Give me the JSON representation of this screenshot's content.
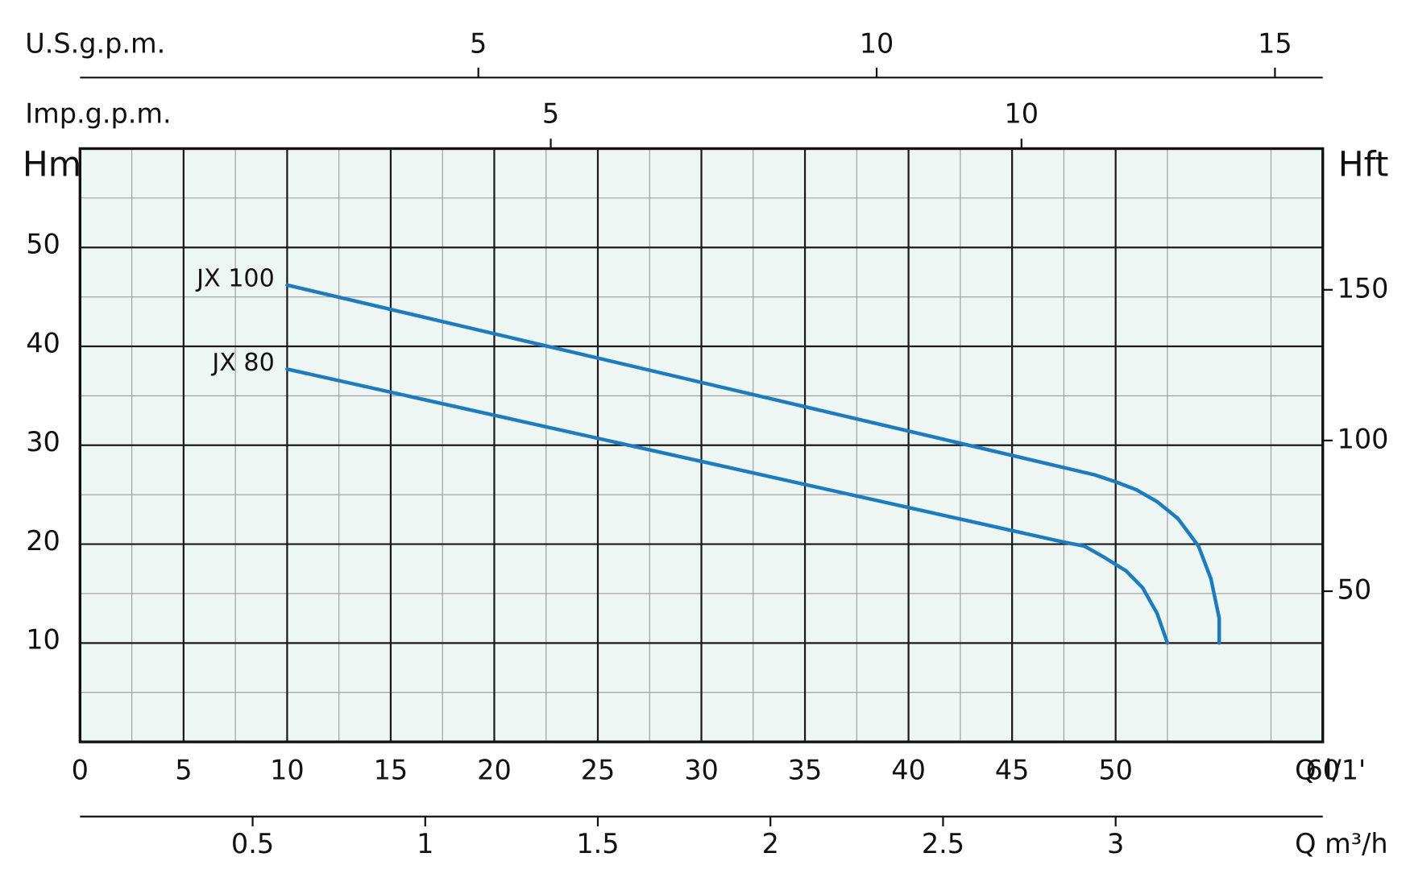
{
  "chart_data": {
    "type": "line",
    "x_label": "Q l/1'",
    "y_label": "Hm",
    "y2_label": "Hft",
    "xlim": [
      0,
      60
    ],
    "xticks": [
      0,
      5,
      10,
      15,
      20,
      25,
      30,
      35,
      40,
      45,
      50,
      60
    ],
    "xminorticks": [
      2.5,
      7.5,
      12.5,
      17.5,
      22.5,
      27.5,
      32.5,
      37.5,
      42.5,
      47.5,
      52.5,
      57.5
    ],
    "ylim": [
      0,
      60
    ],
    "yticks": [
      10,
      20,
      30,
      40,
      50
    ],
    "yminorticks": [
      5,
      15,
      25,
      35,
      45,
      55
    ],
    "y2lim": [
      0,
      196.85
    ],
    "y2ticks": [
      50,
      100,
      150
    ],
    "grid": true,
    "background": "#eef6f4",
    "top_axes": [
      {
        "label": "U.S.g.p.m.",
        "lim": [
          0,
          15.6
        ],
        "ticks": [
          5,
          10,
          15
        ]
      },
      {
        "label": "Imp.g.p.m.",
        "lim": [
          0,
          13.2
        ],
        "ticks": [
          5,
          10
        ]
      }
    ],
    "bottom_axis": {
      "label": "Q m³/h",
      "lim": [
        0,
        3.6
      ],
      "ticks": [
        0.5,
        1,
        1.5,
        2,
        2.5,
        3
      ]
    },
    "series": [
      {
        "name": "JX 100",
        "color": "#1a7cc1",
        "x": [
          10,
          49,
          50,
          51,
          52,
          53,
          54,
          54.6,
          55,
          55
        ],
        "values": [
          46.2,
          27,
          26.3,
          25.5,
          24.3,
          22.6,
          19.8,
          16.5,
          12.5,
          10
        ]
      },
      {
        "name": "JX 80",
        "color": "#1a7cc1",
        "x": [
          10,
          47.5,
          48.5,
          49.5,
          50.5,
          51.3,
          52,
          52.5
        ],
        "values": [
          37.7,
          20.2,
          19.8,
          18.6,
          17.3,
          15.6,
          13,
          10
        ]
      }
    ]
  }
}
